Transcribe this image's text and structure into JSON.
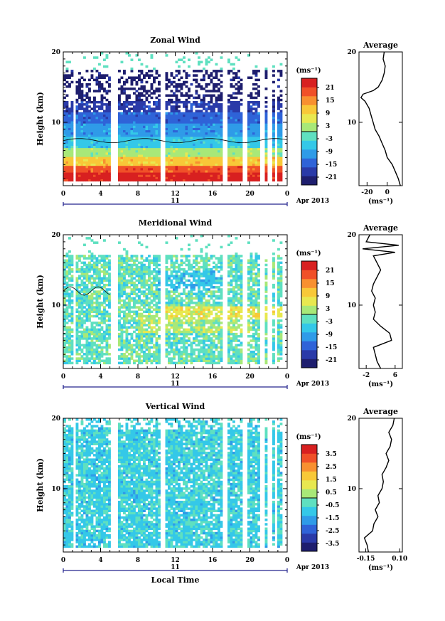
{
  "colors": {
    "scale": [
      "#1e1e6e",
      "#2a3aa8",
      "#2f63d8",
      "#2f9be8",
      "#34c8e8",
      "#5fe0c0",
      "#a8e878",
      "#e8e850",
      "#f8c838",
      "#f89030",
      "#f05028",
      "#d82020"
    ],
    "missing": "#ffffff",
    "contour": "#000000"
  },
  "chart_data": [
    {
      "type": "heatmap",
      "title": "Zonal Wind",
      "ylabel": "Height (km)",
      "xlabel": "",
      "x_ticks": [
        "0",
        "4",
        "8",
        "12",
        "16",
        "20",
        "0"
      ],
      "y_ticks": [
        "10",
        "20"
      ],
      "xlim": [
        0,
        24
      ],
      "ylim": [
        1,
        20
      ],
      "date_center": "11",
      "date_right": "Apr 2013",
      "colorbar": {
        "unit": "(ms⁻¹)",
        "ticks": [
          "21",
          "15",
          "9",
          "3",
          "-3",
          "-9",
          "-15",
          "-21"
        ],
        "range": [
          -24,
          24
        ]
      },
      "profile": {
        "title": "Average",
        "x_ticks": [
          "-20",
          "0"
        ],
        "xlim": [
          -28,
          15
        ],
        "y_ticks": [
          "10",
          "20"
        ],
        "xlabel": "(ms⁻¹)",
        "heights": [
          1,
          2,
          3,
          4,
          5,
          6,
          7,
          8,
          9,
          10,
          11,
          12,
          13,
          13.5,
          14,
          14.5,
          15,
          16,
          17,
          18,
          19,
          20
        ],
        "values": [
          13,
          11,
          8,
          5,
          0,
          -2,
          -5,
          -8,
          -12,
          -14,
          -16,
          -18,
          -22,
          -26,
          -24,
          -14,
          -9,
          -5,
          -3,
          -2,
          -4,
          -3
        ]
      }
    },
    {
      "type": "heatmap",
      "title": "Meridional Wind",
      "ylabel": "Height (km)",
      "xlabel": "",
      "x_ticks": [
        "0",
        "4",
        "8",
        "12",
        "16",
        "20",
        "0"
      ],
      "y_ticks": [
        "10",
        "20"
      ],
      "xlim": [
        0,
        24
      ],
      "ylim": [
        1,
        20
      ],
      "date_center": "11",
      "date_right": "Apr 2013",
      "colorbar": {
        "unit": "(ms⁻¹)",
        "ticks": [
          "21",
          "15",
          "9",
          "3",
          "-3",
          "-9",
          "-15",
          "-21"
        ],
        "range": [
          -24,
          24
        ]
      },
      "profile": {
        "title": "Average",
        "x_ticks": [
          "-2",
          "6"
        ],
        "xlim": [
          -4,
          8
        ],
        "y_ticks": [
          "10",
          "20"
        ],
        "xlabel": "(ms⁻¹)",
        "heights": [
          1,
          2,
          3,
          4,
          5,
          6,
          7,
          8,
          9,
          10,
          11,
          12,
          13,
          14,
          15,
          16,
          17,
          17.5,
          18,
          18.5,
          19,
          20
        ],
        "values": [
          2,
          1,
          0.5,
          0,
          5,
          4.5,
          2,
          0,
          0.5,
          0,
          0.5,
          -0.5,
          0,
          1,
          2,
          1,
          0,
          6,
          -3,
          7,
          -2,
          -1
        ]
      }
    },
    {
      "type": "heatmap",
      "title": "Vertical Wind",
      "ylabel": "Height (km)",
      "xlabel": "Local Time",
      "x_ticks": [
        "0",
        "4",
        "8",
        "12",
        "16",
        "20",
        "0"
      ],
      "y_ticks": [
        "10",
        "20"
      ],
      "xlim": [
        0,
        24
      ],
      "ylim": [
        1,
        20
      ],
      "date_center": "11",
      "date_right": "Apr 2013",
      "colorbar": {
        "unit": "(ms⁻¹)",
        "ticks": [
          "3.5",
          "2.5",
          "1.5",
          "0.5",
          "-0.5",
          "-1.5",
          "-2.5",
          "-3.5"
        ],
        "range": [
          -4,
          4
        ]
      },
      "profile": {
        "title": "Average",
        "x_ticks": [
          "-0.15",
          "0.10"
        ],
        "xlim": [
          -0.2,
          0.12
        ],
        "y_ticks": [
          "10",
          "20"
        ],
        "xlabel": "(ms⁻¹)",
        "heights": [
          1,
          2,
          3,
          4,
          5,
          6,
          7,
          8,
          9,
          10,
          11,
          12,
          13,
          14,
          15,
          16,
          17,
          18,
          19,
          20
        ],
        "values": [
          -0.13,
          -0.14,
          -0.16,
          -0.1,
          -0.09,
          -0.06,
          -0.08,
          -0.05,
          -0.06,
          -0.03,
          -0.02,
          -0.03,
          0.0,
          0.02,
          0.0,
          0.03,
          0.04,
          0.02,
          0.05,
          0.06
        ]
      }
    }
  ]
}
